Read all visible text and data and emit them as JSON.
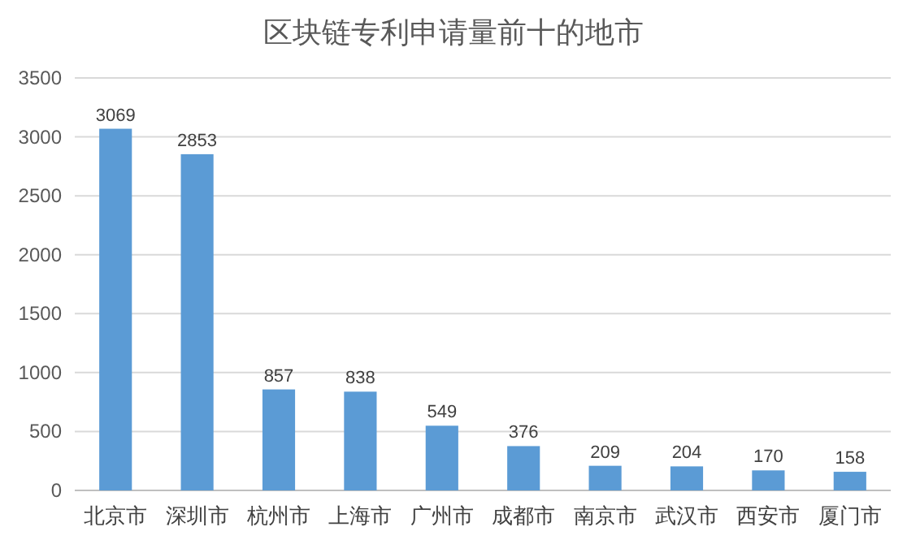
{
  "chart_data": {
    "type": "bar",
    "title": "区块链专利申请量前十的地市",
    "categories": [
      "北京市",
      "深圳市",
      "杭州市",
      "上海市",
      "广州市",
      "成都市",
      "南京市",
      "武汉市",
      "西安市",
      "厦门市"
    ],
    "values": [
      3069,
      2853,
      857,
      838,
      549,
      376,
      209,
      204,
      170,
      158
    ],
    "color": "#5b9bd5",
    "ylim": [
      0,
      3500
    ],
    "yticks": [
      0,
      500,
      1000,
      1500,
      2000,
      2500,
      3000,
      3500
    ],
    "grid": "y",
    "data_labels": true
  }
}
